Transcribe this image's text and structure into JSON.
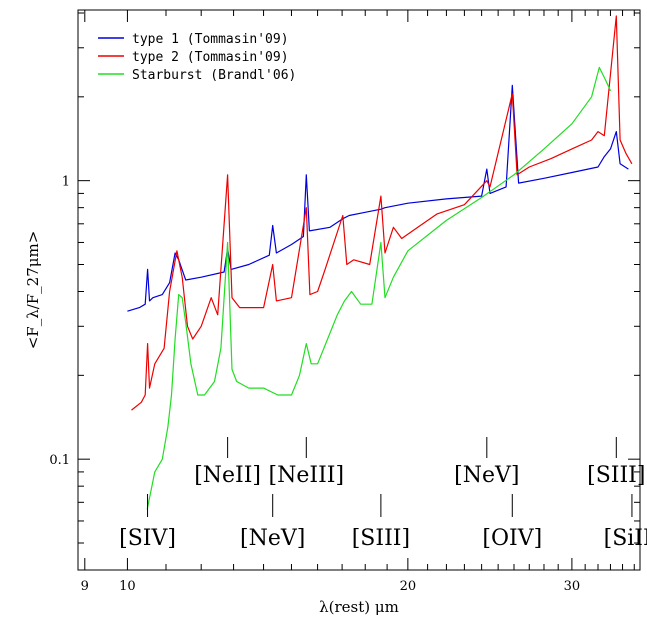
{
  "chart_data": {
    "type": "line",
    "xlabel": "λ(rest) μm",
    "ylabel": "<F_λ/F_27μm>",
    "xscale": "log",
    "yscale": "log",
    "xlim": [
      8.85,
      35.5
    ],
    "ylim": [
      0.04,
      4.1
    ],
    "xticks": [
      {
        "value": 9,
        "label": "9"
      },
      {
        "value": 10,
        "label": "10"
      },
      {
        "value": 20,
        "label": "20"
      },
      {
        "value": 30,
        "label": "30"
      }
    ],
    "yticks": [
      {
        "value": 0.1,
        "label": "0.1"
      },
      {
        "value": 1,
        "label": "1"
      }
    ],
    "legend_position": "top-left",
    "series": [
      {
        "name": "type 1 (Tommasin'09)",
        "color": "#0000dd",
        "x": [
          10.0,
          10.3,
          10.45,
          10.51,
          10.56,
          10.65,
          10.9,
          11.1,
          11.25,
          11.35,
          11.55,
          12.0,
          12.7,
          12.81,
          12.92,
          13.5,
          14.2,
          14.32,
          14.45,
          15.0,
          15.45,
          15.56,
          15.68,
          16.5,
          17.03,
          17.3,
          18.0,
          18.71,
          18.9,
          20.0,
          22.0,
          24.0,
          24.31,
          24.5,
          25.5,
          25.89,
          26.3,
          28.0,
          30.0,
          32.0,
          32.5,
          33.0,
          33.48,
          33.8,
          34.5
        ],
        "y": [
          0.34,
          0.35,
          0.36,
          0.48,
          0.37,
          0.38,
          0.39,
          0.43,
          0.55,
          0.52,
          0.44,
          0.45,
          0.47,
          0.57,
          0.48,
          0.5,
          0.54,
          0.69,
          0.55,
          0.59,
          0.63,
          1.05,
          0.66,
          0.68,
          0.73,
          0.75,
          0.77,
          0.79,
          0.8,
          0.83,
          0.86,
          0.88,
          1.1,
          0.9,
          0.95,
          2.2,
          0.98,
          1.02,
          1.07,
          1.12,
          1.22,
          1.3,
          1.5,
          1.15,
          1.1
        ]
      },
      {
        "name": "type 2 (Tommasin'09)",
        "color": "#ee0000",
        "x": [
          10.1,
          10.35,
          10.45,
          10.51,
          10.56,
          10.7,
          10.95,
          11.1,
          11.3,
          11.45,
          11.6,
          11.75,
          12.0,
          12.3,
          12.5,
          12.81,
          12.95,
          13.2,
          14.0,
          14.32,
          14.45,
          15.0,
          15.56,
          15.7,
          16.0,
          16.3,
          17.03,
          17.2,
          17.5,
          18.2,
          18.71,
          18.9,
          19.3,
          19.7,
          20.5,
          21.5,
          23.0,
          24.31,
          24.5,
          25.89,
          26.2,
          27.0,
          28.5,
          30.0,
          31.5,
          32.0,
          32.5,
          33.48,
          33.8,
          34.3,
          34.8
        ],
        "y": [
          0.15,
          0.16,
          0.17,
          0.26,
          0.18,
          0.22,
          0.25,
          0.4,
          0.56,
          0.45,
          0.3,
          0.27,
          0.3,
          0.38,
          0.33,
          1.05,
          0.38,
          0.35,
          0.35,
          0.5,
          0.37,
          0.38,
          0.8,
          0.39,
          0.4,
          0.48,
          0.75,
          0.5,
          0.52,
          0.5,
          0.88,
          0.55,
          0.68,
          0.62,
          0.68,
          0.76,
          0.82,
          1.0,
          0.95,
          2.05,
          1.05,
          1.12,
          1.2,
          1.3,
          1.4,
          1.5,
          1.45,
          3.9,
          1.4,
          1.25,
          1.15
        ]
      },
      {
        "name": "Starburst (Brandl'06)",
        "color": "#22dd22",
        "x": [
          10.5,
          10.7,
          10.9,
          11.05,
          11.15,
          11.25,
          11.35,
          11.45,
          11.55,
          11.7,
          11.9,
          12.1,
          12.4,
          12.6,
          12.81,
          12.95,
          13.1,
          13.5,
          14.0,
          14.5,
          15.0,
          15.3,
          15.56,
          15.75,
          16.0,
          16.4,
          16.8,
          17.1,
          17.4,
          17.8,
          18.3,
          18.71,
          18.9,
          19.3,
          20.0,
          22.0,
          24.0,
          26.0,
          28.0,
          30.0,
          31.5,
          32.1,
          32.6,
          33.0
        ],
        "y": [
          0.066,
          0.09,
          0.1,
          0.13,
          0.17,
          0.27,
          0.39,
          0.38,
          0.31,
          0.22,
          0.17,
          0.17,
          0.19,
          0.25,
          0.6,
          0.21,
          0.19,
          0.18,
          0.18,
          0.17,
          0.17,
          0.2,
          0.26,
          0.22,
          0.22,
          0.27,
          0.33,
          0.37,
          0.4,
          0.36,
          0.36,
          0.6,
          0.38,
          0.45,
          0.56,
          0.72,
          0.87,
          1.05,
          1.3,
          1.6,
          2.0,
          2.55,
          2.3,
          2.1
        ]
      }
    ],
    "line_labels": [
      {
        "text": "[SIV]",
        "x": 10.51,
        "row": "lower"
      },
      {
        "text": "[NeII]",
        "x": 12.81,
        "row": "upper"
      },
      {
        "text": "[NeV]",
        "x": 14.32,
        "row": "lower"
      },
      {
        "text": "[NeIII]",
        "x": 15.56,
        "row": "upper"
      },
      {
        "text": "[SIII]",
        "x": 18.71,
        "row": "lower"
      },
      {
        "text": "[NeV]",
        "x": 24.31,
        "row": "upper"
      },
      {
        "text": "[OIV]",
        "x": 25.89,
        "row": "lower"
      },
      {
        "text": "[SIII]",
        "x": 33.48,
        "row": "upper"
      },
      {
        "text": "[SiII]",
        "x": 34.8,
        "row": "lower"
      }
    ]
  }
}
